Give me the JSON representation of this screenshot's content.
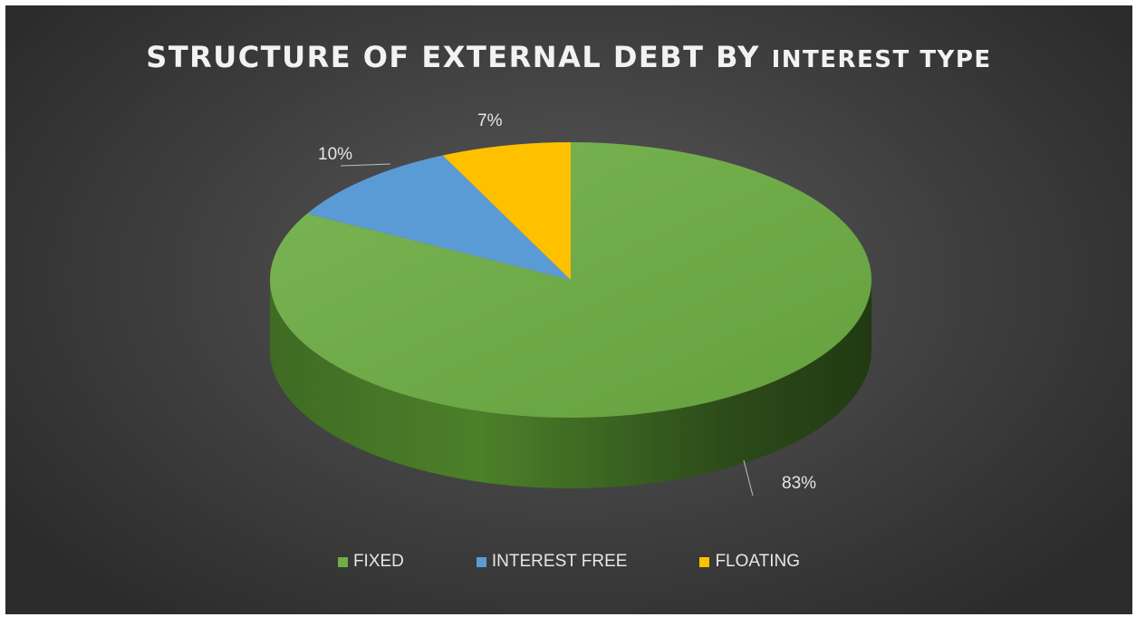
{
  "chart_data": {
    "type": "pie",
    "title_main": "STRUCTURE OF EXTERNAL DEBT BY",
    "title_tail": "INTEREST TYPE",
    "categories": [
      "FIXED",
      "INTEREST FREE",
      "FLOATING"
    ],
    "values": [
      83,
      10,
      7
    ],
    "data_labels": [
      "83%",
      "10%",
      "7%"
    ],
    "colors": [
      "#70ad47",
      "#5b9bd5",
      "#ffc000"
    ],
    "legend_position": "bottom"
  }
}
